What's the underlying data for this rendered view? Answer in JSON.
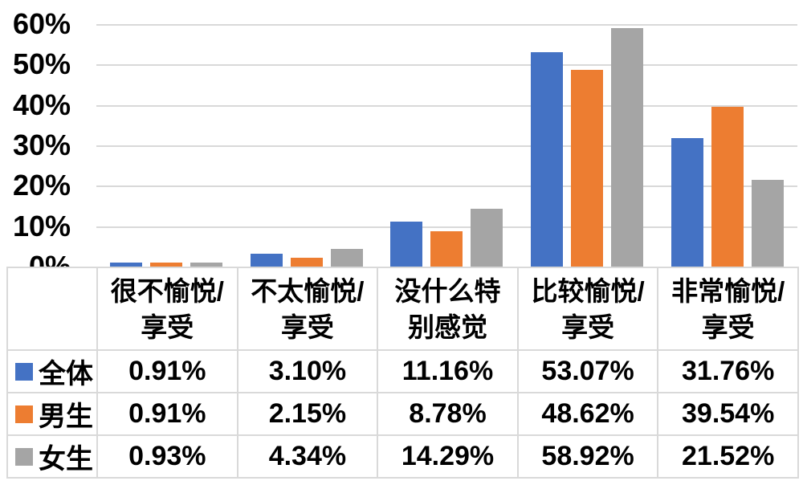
{
  "chart_data": {
    "type": "bar",
    "title": "",
    "xlabel": "",
    "ylabel": "",
    "ylim": [
      0,
      60
    ],
    "y_ticks": [
      "60%",
      "50%",
      "40%",
      "30%",
      "20%",
      "10%",
      "0%"
    ],
    "grid": true,
    "legend_position": "table-left",
    "categories": [
      "很不愉悦/享受",
      "不太愉悦/享受",
      "没什么特别感觉",
      "比较愉悦/享受",
      "非常愉悦/享受"
    ],
    "category_lines": [
      "很不愉悦/\n享受",
      "不太愉悦/\n享受",
      "没什么特\n别感觉",
      "比较愉悦/\n享受",
      "非常愉悦/\n享受"
    ],
    "series": [
      {
        "name": "全体",
        "color": "#4472C4",
        "values": [
          0.91,
          3.1,
          11.16,
          53.07,
          31.76
        ],
        "labels": [
          "0.91%",
          "3.10%",
          "11.16%",
          "53.07%",
          "31.76%"
        ]
      },
      {
        "name": "男生",
        "color": "#ED7D31",
        "values": [
          0.91,
          2.15,
          8.78,
          48.62,
          39.54
        ],
        "labels": [
          "0.91%",
          "2.15%",
          "8.78%",
          "48.62%",
          "39.54%"
        ]
      },
      {
        "name": "女生",
        "color": "#A5A5A5",
        "values": [
          0.93,
          4.34,
          14.29,
          58.92,
          21.52
        ],
        "labels": [
          "0.93%",
          "4.34%",
          "14.29%",
          "58.92%",
          "21.52%"
        ]
      }
    ],
    "colors": {
      "gridline": "#D9D9D9",
      "table_border": "#D9D9D9",
      "text": "#000000",
      "background": "#FFFFFF"
    }
  }
}
